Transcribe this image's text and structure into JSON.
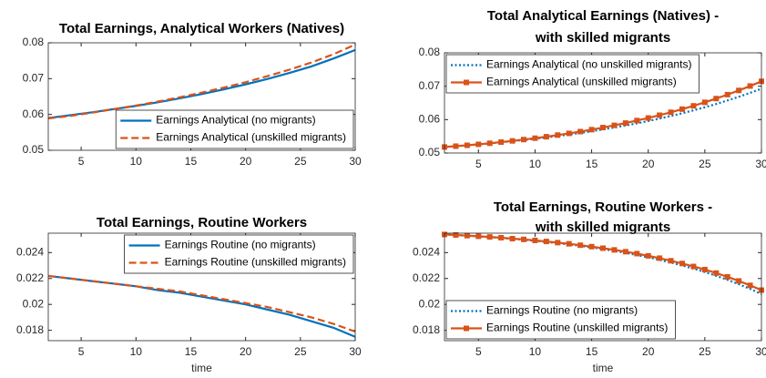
{
  "chart_data": [
    {
      "type": "line",
      "title": [
        "Total Earnings, Analytical Workers (Natives)"
      ],
      "x": [
        2,
        4,
        6,
        8,
        10,
        12,
        14,
        16,
        18,
        20,
        22,
        24,
        26,
        28,
        30
      ],
      "series": [
        {
          "name": "Earnings Analytical (no migrants)",
          "color": "#0072BD",
          "style": "solid",
          "values": [
            0.059,
            0.0598,
            0.0606,
            0.0615,
            0.0624,
            0.0634,
            0.0645,
            0.0657,
            0.067,
            0.0684,
            0.0699,
            0.0716,
            0.0734,
            0.0756,
            0.078
          ]
        },
        {
          "name": "Earnings Analytical (unskilled migrants)",
          "color": "#D95319",
          "style": "dashed",
          "values": [
            0.0589,
            0.0596,
            0.0605,
            0.0615,
            0.0625,
            0.0636,
            0.0648,
            0.0661,
            0.0675,
            0.069,
            0.0707,
            0.0725,
            0.0745,
            0.0768,
            0.0795
          ]
        }
      ],
      "xlim": [
        2,
        30
      ],
      "xticks": [
        5,
        10,
        15,
        20,
        25,
        30
      ],
      "ylim": [
        0.05,
        0.08
      ],
      "yticks": [
        0.05,
        0.06,
        0.07,
        0.08
      ],
      "legend": "southeast"
    },
    {
      "type": "line",
      "title": [
        "Total Analytical Earnings (Natives) -",
        "with skilled migrants"
      ],
      "x": [
        2,
        3,
        4,
        5,
        6,
        7,
        8,
        9,
        10,
        11,
        12,
        13,
        14,
        15,
        16,
        17,
        18,
        19,
        20,
        21,
        22,
        23,
        24,
        25,
        26,
        27,
        28,
        29,
        30
      ],
      "series": [
        {
          "name": "Earnings Analytical (no unskilled migrants)",
          "color": "#0072BD",
          "style": "dotted",
          "values": [
            0.0518,
            0.05205,
            0.05231,
            0.05259,
            0.05288,
            0.0532,
            0.05353,
            0.05389,
            0.05426,
            0.05466,
            0.05509,
            0.05554,
            0.05602,
            0.05653,
            0.05707,
            0.05764,
            0.05825,
            0.05889,
            0.05958,
            0.06031,
            0.06108,
            0.0619,
            0.06277,
            0.0637,
            0.06468,
            0.06573,
            0.06684,
            0.06801,
            0.06926
          ]
        },
        {
          "name": "Earnings Analytical (unskilled migrants)",
          "color": "#D95319",
          "style": "solid",
          "marker": "square",
          "values": [
            0.0518,
            0.05205,
            0.05232,
            0.0526,
            0.05292,
            0.05327,
            0.05363,
            0.05403,
            0.05444,
            0.05488,
            0.05537,
            0.05588,
            0.05642,
            0.057,
            0.05762,
            0.05829,
            0.05897,
            0.05972,
            0.06049,
            0.06132,
            0.0622,
            0.06314,
            0.06413,
            0.06518,
            0.0663,
            0.06749,
            0.06874,
            0.07006,
            0.07146
          ]
        }
      ],
      "xlim": [
        2,
        30
      ],
      "xticks": [
        5,
        10,
        15,
        20,
        25,
        30
      ],
      "ylim": [
        0.05,
        0.08
      ],
      "yticks": [
        0.05,
        0.06,
        0.07,
        0.08
      ],
      "legend": "northwest"
    },
    {
      "type": "line",
      "title": [
        "Total Earnings, Routine Workers"
      ],
      "xlabel": "time",
      "x": [
        2,
        4,
        6,
        8,
        10,
        12,
        14,
        16,
        18,
        20,
        22,
        24,
        26,
        28,
        30
      ],
      "series": [
        {
          "name": "Earnings Routine (no migrants)",
          "color": "#0072BD",
          "style": "solid",
          "values": [
            0.0222,
            0.022,
            0.0218,
            0.0216,
            0.0214,
            0.0211,
            0.0209,
            0.0206,
            0.0203,
            0.02,
            0.0196,
            0.0192,
            0.0187,
            0.0182,
            0.0175
          ]
        },
        {
          "name": "Earnings Routine (unskilled migrants)",
          "color": "#D95319",
          "style": "dashed",
          "values": [
            0.0222,
            0.022,
            0.0218,
            0.0216,
            0.0214,
            0.0212,
            0.021,
            0.0207,
            0.0204,
            0.0201,
            0.0198,
            0.0194,
            0.019,
            0.0185,
            0.0179
          ]
        }
      ],
      "xlim": [
        2,
        30
      ],
      "xticks": [
        5,
        10,
        15,
        20,
        25,
        30
      ],
      "ylim": [
        0.0172,
        0.0255
      ],
      "yticks": [
        0.018,
        0.02,
        0.022,
        0.024
      ],
      "legend": "northeast"
    },
    {
      "type": "line",
      "title": [
        "Total Earnings, Routine Workers -",
        "with skilled migrants"
      ],
      "xlabel": "time",
      "x": [
        2,
        3,
        4,
        5,
        6,
        7,
        8,
        9,
        10,
        11,
        12,
        13,
        14,
        15,
        16,
        17,
        18,
        19,
        20,
        21,
        22,
        23,
        24,
        25,
        26,
        27,
        28,
        29,
        30
      ],
      "series": [
        {
          "name": "Earnings Routine (no migrants)",
          "color": "#0072BD",
          "style": "dotted",
          "values": [
            0.0254,
            0.02535,
            0.02531,
            0.02525,
            0.02519,
            0.02513,
            0.02506,
            0.02499,
            0.02491,
            0.02482,
            0.02473,
            0.02463,
            0.02452,
            0.0244,
            0.02427,
            0.02413,
            0.02398,
            0.02381,
            0.02364,
            0.02344,
            0.02323,
            0.02301,
            0.02276,
            0.0225,
            0.02221,
            0.0219,
            0.02156,
            0.0212,
            0.0208
          ]
        },
        {
          "name": "Earnings Routine (unskilled migrants)",
          "color": "#D95319",
          "style": "solid",
          "marker": "square",
          "values": [
            0.0254,
            0.02536,
            0.02531,
            0.02526,
            0.02521,
            0.02515,
            0.02508,
            0.02502,
            0.02494,
            0.02486,
            0.02477,
            0.02468,
            0.02457,
            0.02446,
            0.02434,
            0.02421,
            0.02407,
            0.02392,
            0.02375,
            0.02357,
            0.02337,
            0.02316,
            0.02293,
            0.02269,
            0.02242,
            0.02213,
            0.02181,
            0.02147,
            0.0211
          ]
        }
      ],
      "xlim": [
        2,
        30
      ],
      "xticks": [
        5,
        10,
        15,
        20,
        25,
        30
      ],
      "ylim": [
        0.0172,
        0.0255
      ],
      "yticks": [
        0.018,
        0.02,
        0.022,
        0.024
      ],
      "legend": "southwest"
    }
  ]
}
